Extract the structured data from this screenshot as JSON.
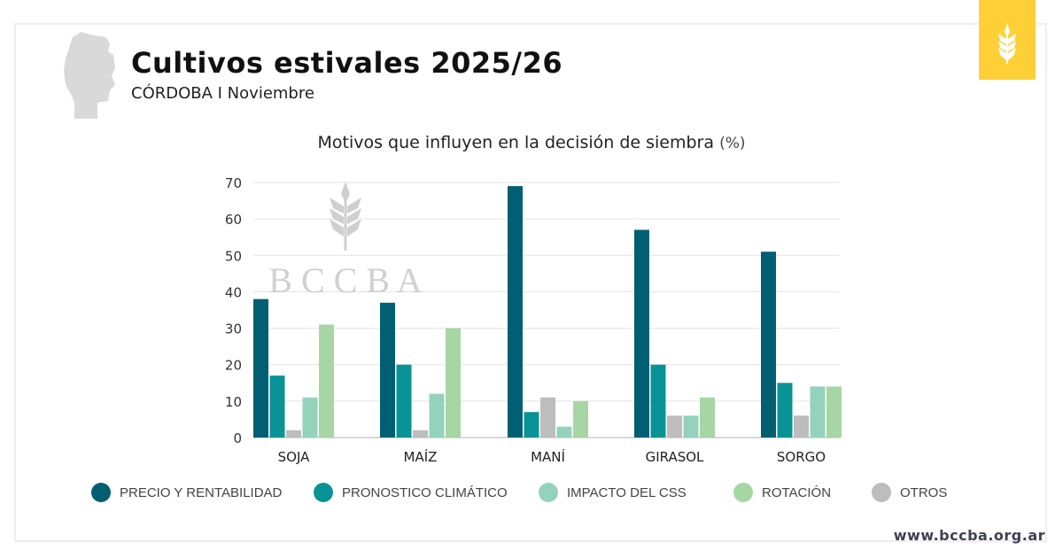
{
  "header": {
    "title": "Cultivos estivales 2025/26",
    "subtitle": "CÓRDOBA I Noviembre",
    "logo_icon": "wheat-icon",
    "map_icon": "cordoba-map-icon"
  },
  "watermark": "B C C B A",
  "footer": {
    "url": "www.bccba.org.ar"
  },
  "colors": {
    "badge": "#fdd038"
  },
  "chart_data": {
    "type": "bar",
    "title": "Motivos que influyen en la decisión de siembra",
    "title_unit": "(%)",
    "xlabel": "",
    "ylabel": "%",
    "ylim": [
      0,
      70
    ],
    "yticks": [
      0,
      10,
      20,
      30,
      40,
      50,
      60,
      70
    ],
    "grid": true,
    "legend_position": "bottom",
    "categories": [
      "SOJA",
      "MAÍZ",
      "MANÍ",
      "GIRASOL",
      "SORGO"
    ],
    "series": [
      {
        "name": "PRECIO Y RENTABILIDAD",
        "color": "#005f73",
        "values": [
          38,
          37,
          69,
          57,
          51
        ]
      },
      {
        "name": "PRONOSTICO CLIMÁTICO",
        "color": "#0a9396",
        "values": [
          17,
          20,
          7,
          20,
          15
        ]
      },
      {
        "name": "OTROS",
        "color": "#bdbdbd",
        "values": [
          2,
          2,
          11,
          6,
          6
        ]
      },
      {
        "name": "IMPACTO DEL CSS",
        "color": "#94d2bd",
        "values": [
          11,
          12,
          3,
          6,
          14
        ]
      },
      {
        "name": "ROTACIÓN",
        "color": "#a6d6a4",
        "values": [
          31,
          30,
          10,
          11,
          14
        ]
      }
    ],
    "legend_order": [
      "PRECIO Y RENTABILIDAD",
      "PRONOSTICO CLIMÁTICO",
      "IMPACTO DEL CSS",
      "ROTACIÓN",
      "OTROS"
    ]
  }
}
